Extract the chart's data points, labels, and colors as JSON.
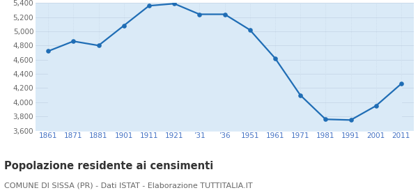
{
  "years": [
    1861,
    1871,
    1881,
    1901,
    1911,
    1921,
    1931,
    1936,
    1951,
    1961,
    1971,
    1981,
    1991,
    2001,
    2011
  ],
  "population": [
    4720,
    4860,
    4800,
    5080,
    5360,
    5390,
    5240,
    5240,
    5020,
    4620,
    4100,
    3760,
    3750,
    3950,
    4260
  ],
  "x_labels": [
    "1861",
    "1871",
    "1881",
    "1901",
    "1911",
    "1921",
    "’31",
    "’36",
    "1951",
    "1961",
    "1971",
    "1981",
    "1991",
    "2001",
    "2011"
  ],
  "line_color": "#1f6db5",
  "fill_color": "#daeaf7",
  "marker_color": "#1f6db5",
  "bg_color": "#f5f5f5",
  "chart_bg": "#ffffff",
  "grid_color_h": "#c8d8e8",
  "grid_color_v": "#c8d8e8",
  "ylim": [
    3600,
    5400
  ],
  "yticks": [
    3600,
    3800,
    4000,
    4200,
    4400,
    4600,
    4800,
    5000,
    5200,
    5400
  ],
  "title": "Popolazione residente ai censimenti",
  "subtitle": "COMUNE DI SISSA (PR) - Dati ISTAT - Elaborazione TUTTITALIA.IT",
  "title_fontsize": 10.5,
  "subtitle_fontsize": 8,
  "tick_color": "#4472c4",
  "tick_label_fontsize": 7.5,
  "ytick_fontsize": 7.5,
  "ytick_color": "#666666"
}
